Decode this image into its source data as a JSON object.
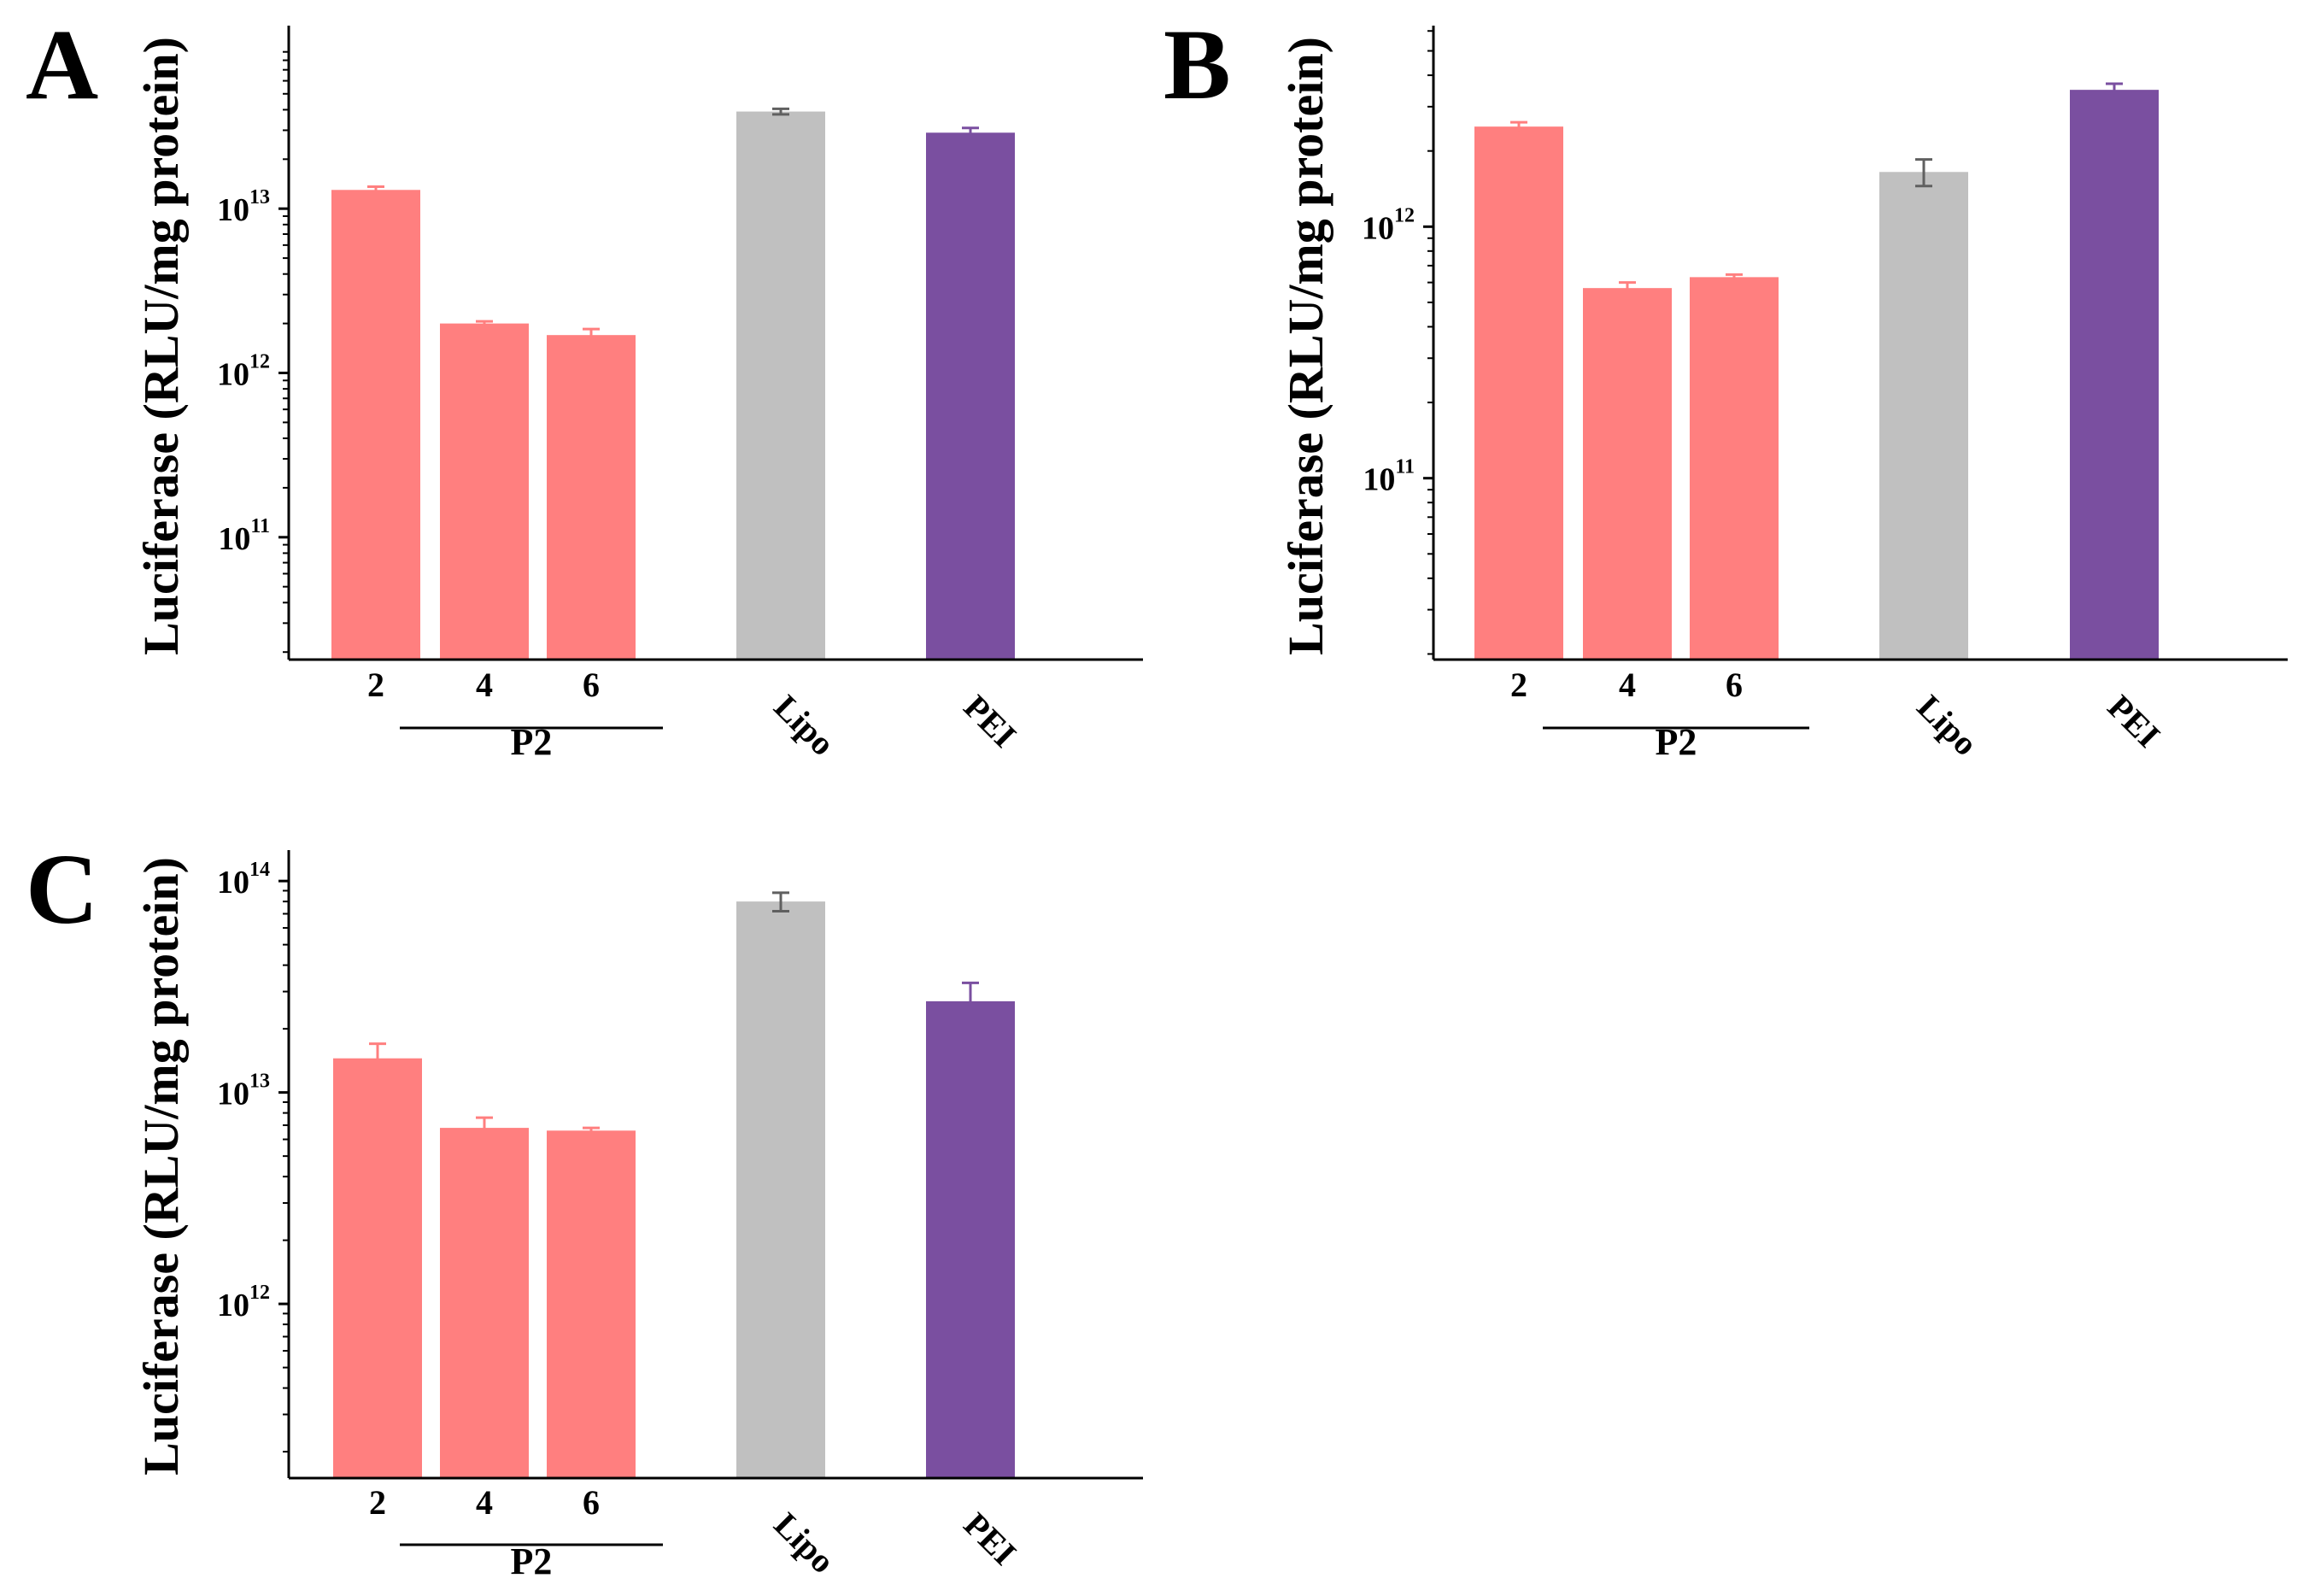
{
  "colors": {
    "p2": "#ff7f7f",
    "p2_err": "#ff7f7f",
    "lipo": "#c0c0c0",
    "lipo_err": "#606060",
    "pei": "#7a4fa0",
    "pei_err": "#7a4fa0",
    "axis": "#000000"
  },
  "chart_data": [
    {
      "panel": "A",
      "type": "bar",
      "yscale": "log",
      "ylabel": "Luciferase (RLU/mg protein)",
      "ylim": [
        18000000000.0,
        130000000000000.0
      ],
      "yticks": [
        {
          "value": 100000000000.0,
          "base": "10",
          "exp": "11"
        },
        {
          "value": 1000000000000.0,
          "base": "10",
          "exp": "12"
        },
        {
          "value": 10000000000000.0,
          "base": "10",
          "exp": "13"
        }
      ],
      "categories": [
        "2",
        "4",
        "6",
        "Lipo",
        "PEI"
      ],
      "series": [
        {
          "name": "P2 2",
          "value": 13000000000000.0,
          "error": 600000000000.0,
          "color_key": "p2"
        },
        {
          "name": "P2 4",
          "value": 2000000000000.0,
          "error": 60000000000.0,
          "color_key": "p2"
        },
        {
          "name": "P2 6",
          "value": 1700000000000.0,
          "error": 150000000000.0,
          "color_key": "p2"
        },
        {
          "name": "Lipo",
          "value": 39000000000000.0,
          "error": 1500000000000.0,
          "color_key": "lipo"
        },
        {
          "name": "PEI",
          "value": 29000000000000.0,
          "error": 2000000000000.0,
          "color_key": "pei"
        }
      ],
      "group_label": "P2"
    },
    {
      "panel": "B",
      "type": "bar",
      "yscale": "log",
      "ylabel": "Luciferase (RLU/mg protein)",
      "ylim": [
        19000000000.0,
        6300000000000.0
      ],
      "yticks": [
        {
          "value": 100000000000.0,
          "base": "10",
          "exp": "11"
        },
        {
          "value": 1000000000000.0,
          "base": "10",
          "exp": "12"
        }
      ],
      "categories": [
        "2",
        "4",
        "6",
        "Lipo",
        "PEI"
      ],
      "series": [
        {
          "name": "P2 2",
          "value": 2500000000000.0,
          "error": 100000000000.0,
          "color_key": "p2"
        },
        {
          "name": "P2 4",
          "value": 570000000000.0,
          "error": 30000000000.0,
          "color_key": "p2"
        },
        {
          "name": "P2 6",
          "value": 630000000000.0,
          "error": 15000000000.0,
          "color_key": "p2"
        },
        {
          "name": "Lipo",
          "value": 1650000000000.0,
          "error": 200000000000.0,
          "color_key": "lipo"
        },
        {
          "name": "PEI",
          "value": 3500000000000.0,
          "error": 200000000000.0,
          "color_key": "pei"
        }
      ],
      "group_label": "P2"
    },
    {
      "panel": "C",
      "type": "bar",
      "yscale": "log",
      "ylabel": "Luciferase (RLU/mg protein)",
      "ylim": [
        150000000000.0,
        140000000000000.0
      ],
      "yticks": [
        {
          "value": 1000000000000.0,
          "base": "10",
          "exp": "12"
        },
        {
          "value": 10000000000000.0,
          "base": "10",
          "exp": "13"
        },
        {
          "value": 100000000000000.0,
          "base": "10",
          "exp": "14"
        }
      ],
      "categories": [
        "2",
        "4",
        "6",
        "Lipo",
        "PEI"
      ],
      "series": [
        {
          "name": "P2 2",
          "value": 14500000000000.0,
          "error": 2500000000000.0,
          "color_key": "p2"
        },
        {
          "name": "P2 4",
          "value": 6800000000000.0,
          "error": 800000000000.0,
          "color_key": "p2"
        },
        {
          "name": "P2 6",
          "value": 6600000000000.0,
          "error": 200000000000.0,
          "color_key": "p2"
        },
        {
          "name": "Lipo",
          "value": 80000000000000.0,
          "error": 8000000000000.0,
          "color_key": "lipo"
        },
        {
          "name": "PEI",
          "value": 27000000000000.0,
          "error": 6000000000000.0,
          "color_key": "pei"
        }
      ],
      "group_label": "P2"
    }
  ]
}
